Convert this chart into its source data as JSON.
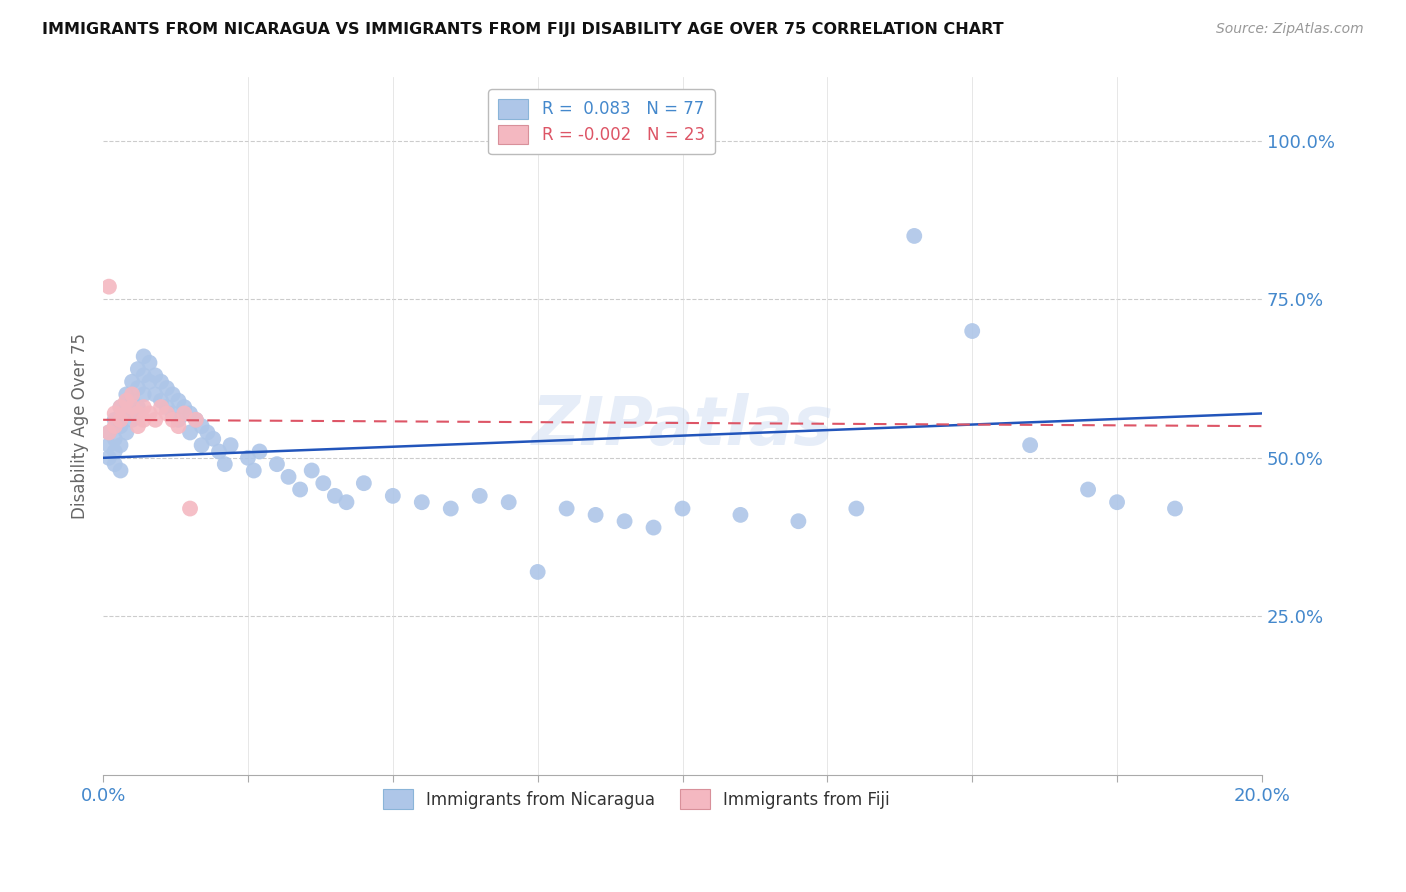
{
  "title": "IMMIGRANTS FROM NICARAGUA VS IMMIGRANTS FROM FIJI DISABILITY AGE OVER 75 CORRELATION CHART",
  "source": "Source: ZipAtlas.com",
  "ylabel": "Disability Age Over 75",
  "r_nicaragua": 0.083,
  "r_fiji": -0.002,
  "n_nicaragua": 77,
  "n_fiji": 23,
  "color_nicaragua": "#aec6e8",
  "color_fiji": "#f4b8c1",
  "color_line_nicaragua": "#2255bb",
  "color_line_fiji": "#dd5566",
  "background_color": "#ffffff",
  "grid_color": "#cccccc",
  "title_color": "#111111",
  "axis_label_color": "#4488cc",
  "watermark": "ZIPatlas",
  "xlim": [
    0.0,
    0.2
  ],
  "ylim": [
    0.0,
    1.1
  ],
  "nicaragua_x": [
    0.001,
    0.001,
    0.001,
    0.002,
    0.002,
    0.002,
    0.002,
    0.003,
    0.003,
    0.003,
    0.003,
    0.004,
    0.004,
    0.004,
    0.005,
    0.005,
    0.005,
    0.006,
    0.006,
    0.006,
    0.007,
    0.007,
    0.007,
    0.008,
    0.008,
    0.009,
    0.009,
    0.01,
    0.01,
    0.011,
    0.011,
    0.012,
    0.012,
    0.013,
    0.013,
    0.014,
    0.015,
    0.015,
    0.016,
    0.017,
    0.017,
    0.018,
    0.019,
    0.02,
    0.021,
    0.022,
    0.025,
    0.026,
    0.027,
    0.03,
    0.032,
    0.034,
    0.036,
    0.038,
    0.04,
    0.042,
    0.045,
    0.05,
    0.055,
    0.06,
    0.065,
    0.07,
    0.075,
    0.08,
    0.085,
    0.09,
    0.095,
    0.1,
    0.11,
    0.12,
    0.13,
    0.14,
    0.15,
    0.16,
    0.17,
    0.175,
    0.185
  ],
  "nicaragua_y": [
    0.54,
    0.52,
    0.5,
    0.56,
    0.53,
    0.51,
    0.49,
    0.58,
    0.55,
    0.52,
    0.48,
    0.6,
    0.57,
    0.54,
    0.62,
    0.59,
    0.56,
    0.64,
    0.61,
    0.58,
    0.66,
    0.63,
    0.6,
    0.65,
    0.62,
    0.63,
    0.6,
    0.62,
    0.59,
    0.61,
    0.58,
    0.6,
    0.57,
    0.59,
    0.56,
    0.58,
    0.57,
    0.54,
    0.56,
    0.55,
    0.52,
    0.54,
    0.53,
    0.51,
    0.49,
    0.52,
    0.5,
    0.48,
    0.51,
    0.49,
    0.47,
    0.45,
    0.48,
    0.46,
    0.44,
    0.43,
    0.46,
    0.44,
    0.43,
    0.42,
    0.44,
    0.43,
    0.32,
    0.42,
    0.41,
    0.4,
    0.39,
    0.42,
    0.41,
    0.4,
    0.42,
    0.85,
    0.7,
    0.52,
    0.45,
    0.43,
    0.42
  ],
  "fiji_x": [
    0.001,
    0.001,
    0.002,
    0.002,
    0.003,
    0.003,
    0.004,
    0.004,
    0.005,
    0.005,
    0.006,
    0.006,
    0.007,
    0.007,
    0.008,
    0.009,
    0.01,
    0.011,
    0.012,
    0.013,
    0.014,
    0.015,
    0.016
  ],
  "fiji_y": [
    0.77,
    0.54,
    0.57,
    0.55,
    0.58,
    0.56,
    0.59,
    0.57,
    0.6,
    0.58,
    0.57,
    0.55,
    0.58,
    0.56,
    0.57,
    0.56,
    0.58,
    0.57,
    0.56,
    0.55,
    0.57,
    0.42,
    0.56
  ]
}
